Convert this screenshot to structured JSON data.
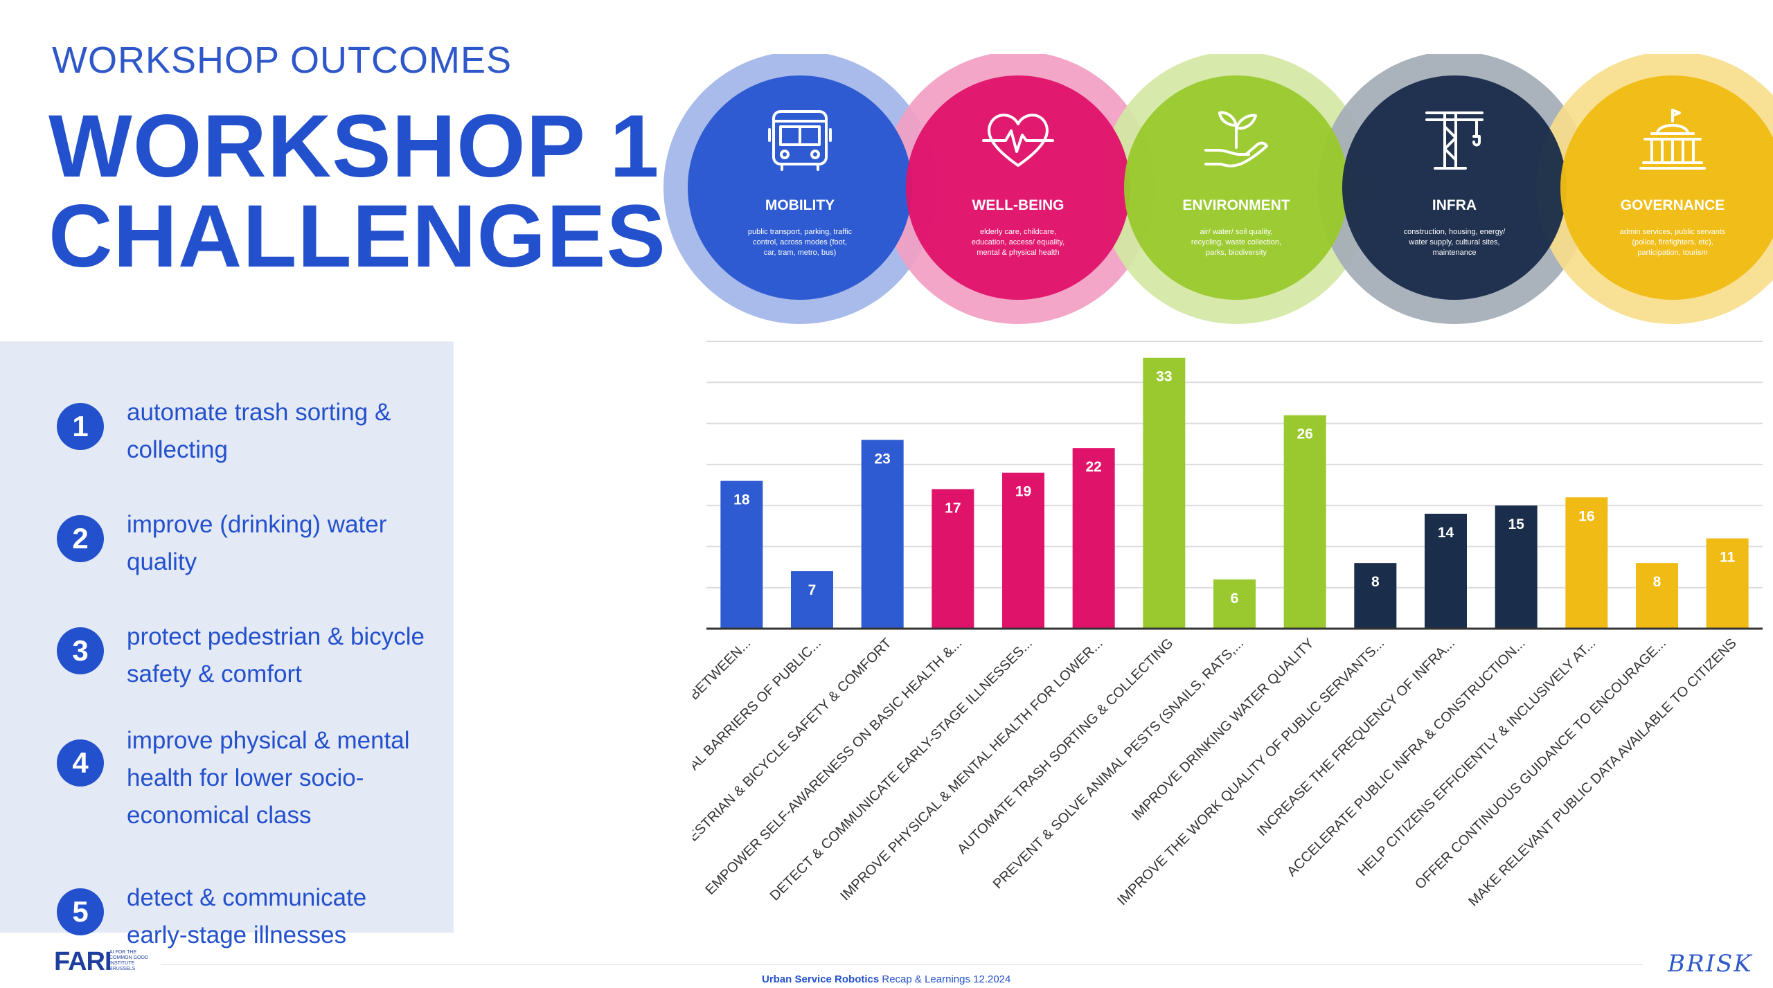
{
  "header": {
    "subtitle": "WORKSHOP OUTCOMES",
    "title_line1": "WORKSHOP 1",
    "title_line2": "CHALLENGES"
  },
  "top_challenges": [
    {
      "num": "1",
      "text": "automate trash sorting & collecting"
    },
    {
      "num": "2",
      "text": "improve (drinking) water quality"
    },
    {
      "num": "3",
      "text": "protect pedestrian & bicycle safety & comfort"
    },
    {
      "num": "4",
      "text": "improve physical & mental health for lower socio-economical class"
    },
    {
      "num": "5",
      "text": "detect & communicate early-stage illnesses"
    }
  ],
  "categories": [
    {
      "name": "MOBILITY",
      "desc": [
        "public transport, parking, traffic",
        "control, across modes (foot,",
        "car, tram, metro, bus)"
      ],
      "color": "#2e5bd1",
      "halo": "#a9bbeb",
      "icon": "bus-icon"
    },
    {
      "name": "WELL-BEING",
      "desc": [
        "elderly care, childcare,",
        "education, access/ equality,",
        "mental & physical health"
      ],
      "color": "#e0136b",
      "halo": "#f29ec2",
      "icon": "heart-pulse-icon"
    },
    {
      "name": "ENVIRONMENT",
      "desc": [
        "air/ water/ soil quality,",
        "recycling, waste collection,",
        "parks, biodiversity"
      ],
      "color": "#99c92e",
      "halo": "#d4e8a4",
      "icon": "plant-in-hand-icon"
    },
    {
      "name": "INFRA",
      "desc": [
        "construction, housing, energy/",
        "water supply, cultural sites,",
        "maintenance"
      ],
      "color": "#1a2d4a",
      "halo": "#a3abb6",
      "icon": "crane-icon"
    },
    {
      "name": "GOVERNANCE",
      "desc": [
        "admin services, public servants",
        "(police, firefighters, etc),",
        "participation, tourism"
      ],
      "color": "#f0bb14",
      "halo": "#f7dd8c",
      "icon": "government-building-icon"
    }
  ],
  "chart_data": {
    "type": "bar",
    "title": "",
    "xlabel": "",
    "ylabel": "",
    "ylim": [
      0,
      35
    ],
    "grid": true,
    "legend": "none",
    "categories": [
      "ENABLE EASY & SEAMLESS SWITCHES BETWEEN...",
      "REMOVE PHYSICAL & DIGITAL BARRIERS OF PUBLIC...",
      "PROTECT PEDESTRIAN & BICYCLE SAFETY & COMFORT",
      "EMPOWER SELF-AWARENESS ON BASIC HEALTH &...",
      "DETECT & COMMUNICATE EARLY-STAGE ILLNESSES...",
      "IMPROVE PHYSICAL & MENTAL HEALTH FOR LOWER...",
      "AUTOMATE TRASH SORTING & COLLECTING",
      "PREVENT & SOLVE ANIMAL PESTS (SNAILS, RATS,...",
      "IMPROVE DRINKING WATER QUALITY",
      "IMPROVE THE WORK QUALITY OF PUBLIC SERVANTS...",
      "INCREASE THE FREQUENCY OF INFRA...",
      "ACCELERATE PUBLIC INFRA & CONSTRUCTION...",
      "HELP CITIZENS EFFICIENTLY & INCLUSIVELY AT...",
      "OFFER CONTINUOUS GUIDANCE TO ENCOURAGE...",
      "MAKE RELEVANT PUBLIC DATA AVAILABLE TO CITIZENS"
    ],
    "values": [
      18,
      7,
      23,
      17,
      19,
      22,
      33,
      6,
      26,
      8,
      14,
      15,
      16,
      8,
      11
    ],
    "colors": [
      "#2e5bd1",
      "#2e5bd1",
      "#2e5bd1",
      "#e0136b",
      "#e0136b",
      "#e0136b",
      "#99c92e",
      "#99c92e",
      "#99c92e",
      "#1a2d4a",
      "#1a2d4a",
      "#1a2d4a",
      "#f0bb14",
      "#f0bb14",
      "#f0bb14"
    ]
  },
  "footer": {
    "logo": "FARI",
    "logo_sub": "AI FOR THE COMMON GOOD INSTITUTE BRUSSELS",
    "text_bold": "Urban Service Robotics",
    "text_rest": " Recap & Learnings 12.2024",
    "brand_right": "BRISK"
  }
}
